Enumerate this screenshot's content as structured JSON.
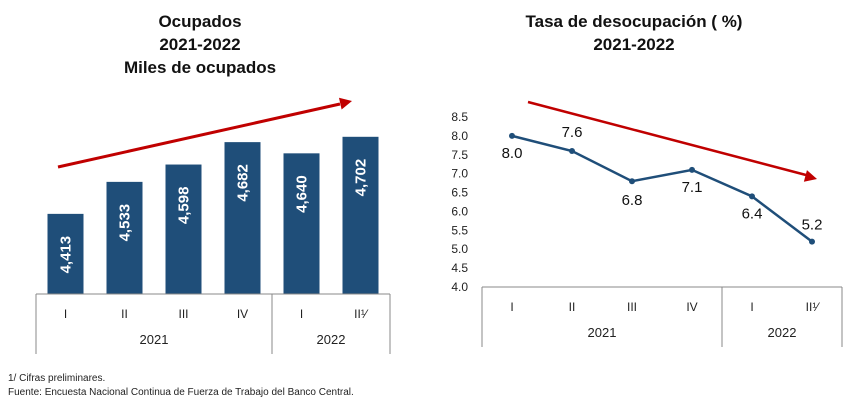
{
  "left_chart": {
    "title_lines": [
      "Ocupados",
      "2021-2022",
      "Miles de ocupados"
    ]
  },
  "right_chart": {
    "title_lines": [
      "Tasa de desocupación ( %)",
      "2021-2022"
    ]
  },
  "colors": {
    "bar": "#1f4e79",
    "line": "#1f4e79",
    "trend_arrow": "#c00000",
    "axis": "#888888"
  },
  "chart_data": [
    {
      "type": "bar",
      "title": "Ocupados 2021-2022 Miles de ocupados",
      "categories": [
        "I",
        "II",
        "III",
        "IV",
        "I",
        "II¹⁄"
      ],
      "groups": [
        {
          "label": "2021",
          "count": 4
        },
        {
          "label": "2022",
          "count": 2
        }
      ],
      "values": [
        4413,
        4533,
        4598,
        4682,
        4640,
        4702
      ],
      "value_labels": [
        "4,413",
        "4,533",
        "4,598",
        "4,682",
        "4,640",
        "4,702"
      ],
      "trend": "up"
    },
    {
      "type": "line",
      "title": "Tasa de desocupación ( %) 2021-2022",
      "categories": [
        "I",
        "II",
        "III",
        "IV",
        "I",
        "II¹⁄"
      ],
      "groups": [
        {
          "label": "2021",
          "count": 4
        },
        {
          "label": "2022",
          "count": 2
        }
      ],
      "values": [
        8.0,
        7.6,
        6.8,
        7.1,
        6.4,
        5.2
      ],
      "value_labels": [
        "8.0",
        "7.6",
        "6.8",
        "7.1",
        "6.4",
        "5.2"
      ],
      "ylim": [
        4.0,
        8.5
      ],
      "yticks": [
        "4.0",
        "4.5",
        "5.0",
        "5.5",
        "6.0",
        "6.5",
        "7.0",
        "7.5",
        "8.0",
        "8.5"
      ],
      "trend": "down"
    }
  ],
  "footnotes": {
    "note": "1/ Cifras preliminares.",
    "source": "Fuente: Encuesta Nacional Continua de Fuerza de Trabajo del Banco Central."
  }
}
